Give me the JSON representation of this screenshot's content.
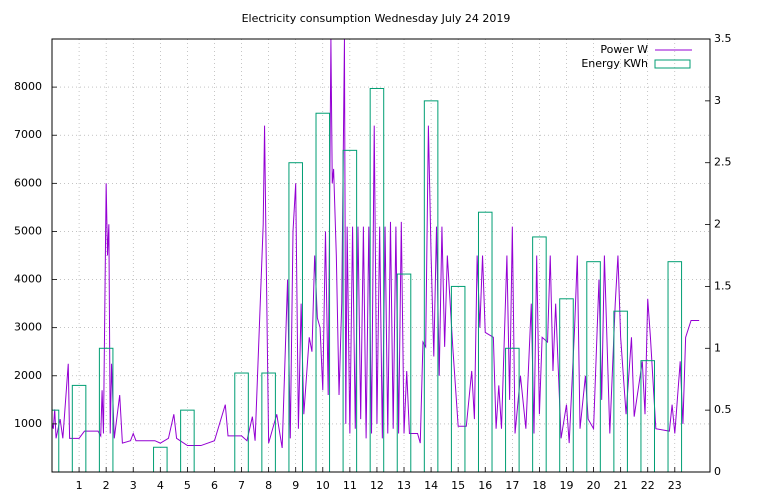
{
  "chart_data": {
    "type": "line",
    "title": "Electricity consumption Wednesday July 24 2019",
    "xlim": [
      0,
      24.3
    ],
    "xticks": [
      1,
      2,
      3,
      4,
      5,
      6,
      7,
      8,
      9,
      10,
      11,
      12,
      13,
      14,
      15,
      16,
      17,
      18,
      19,
      20,
      21,
      22,
      23
    ],
    "ylim": [
      0,
      9000
    ],
    "yticks": [
      1000,
      2000,
      3000,
      4000,
      5000,
      6000,
      7000,
      8000
    ],
    "y2lim": [
      0,
      3.5
    ],
    "y2ticks": [
      0,
      0.5,
      1,
      1.5,
      2,
      2.5,
      3,
      3.5
    ],
    "grid": true,
    "legend": "top-right",
    "series": [
      {
        "name": "Power W",
        "color": "#9400d3",
        "type": "line",
        "x": [
          0.0,
          0.05,
          0.1,
          0.15,
          0.3,
          0.4,
          0.6,
          0.65,
          1.0,
          1.2,
          1.7,
          1.8,
          1.85,
          1.9,
          2.0,
          2.05,
          2.1,
          2.15,
          2.2,
          2.3,
          2.5,
          2.6,
          2.9,
          3.0,
          3.1,
          3.8,
          4.0,
          4.3,
          4.5,
          4.6,
          5.0,
          5.5,
          6.0,
          6.4,
          6.5,
          7.0,
          7.2,
          7.4,
          7.5,
          7.8,
          7.85,
          7.9,
          8.0,
          8.3,
          8.5,
          8.7,
          8.8,
          8.9,
          9.0,
          9.1,
          9.2,
          9.3,
          9.5,
          9.6,
          9.7,
          9.8,
          9.9,
          10.0,
          10.1,
          10.2,
          10.3,
          10.35,
          10.4,
          10.5,
          10.6,
          10.7,
          10.8,
          10.85,
          10.9,
          11.0,
          11.1,
          11.2,
          11.3,
          11.4,
          11.5,
          11.6,
          11.7,
          11.8,
          11.9,
          12.0,
          12.1,
          12.2,
          12.3,
          12.4,
          12.5,
          12.6,
          12.7,
          12.8,
          12.9,
          13.0,
          13.1,
          13.2,
          13.5,
          13.6,
          13.7,
          13.8,
          13.9,
          14.0,
          14.1,
          14.2,
          14.3,
          14.4,
          14.5,
          14.6,
          14.8,
          15.0,
          15.3,
          15.5,
          15.6,
          15.7,
          15.8,
          15.9,
          16.0,
          16.3,
          16.4,
          16.5,
          16.6,
          16.8,
          16.9,
          17.0,
          17.1,
          17.3,
          17.5,
          17.7,
          17.8,
          17.9,
          18.0,
          18.1,
          18.3,
          18.4,
          18.5,
          18.6,
          18.8,
          19.0,
          19.1,
          19.3,
          19.4,
          19.5,
          19.7,
          19.8,
          20.0,
          20.2,
          20.3,
          20.4,
          20.6,
          20.8,
          20.9,
          21.0,
          21.2,
          21.4,
          21.5,
          21.8,
          21.9,
          22.0,
          22.1,
          22.3,
          22.8,
          22.9,
          23.0,
          23.2,
          23.3,
          23.4,
          23.6,
          23.9
        ],
        "values": [
          1000,
          900,
          1300,
          700,
          1100,
          700,
          2250,
          700,
          700,
          850,
          850,
          750,
          1700,
          800,
          6000,
          4500,
          5150,
          800,
          2250,
          700,
          1600,
          600,
          650,
          800,
          650,
          650,
          600,
          700,
          1200,
          700,
          550,
          550,
          650,
          1400,
          750,
          750,
          650,
          1150,
          650,
          5150,
          7200,
          4900,
          600,
          1200,
          500,
          4000,
          700,
          5000,
          6000,
          900,
          3500,
          1200,
          2800,
          2500,
          4500,
          3200,
          3000,
          1700,
          5000,
          1600,
          9000,
          6000,
          6300,
          4500,
          1600,
          3500,
          9000,
          1000,
          5100,
          800,
          5100,
          900,
          5100,
          1100,
          5100,
          700,
          5100,
          800,
          7200,
          1000,
          5100,
          700,
          5100,
          800,
          5200,
          900,
          5100,
          800,
          5200,
          800,
          2100,
          800,
          800,
          600,
          2700,
          2600,
          7200,
          4500,
          2400,
          5100,
          2000,
          5100,
          2600,
          4500,
          2600,
          950,
          950,
          2100,
          1100,
          4500,
          3000,
          4500,
          2900,
          2800,
          900,
          1800,
          900,
          4500,
          1500,
          5100,
          800,
          2000,
          900,
          3500,
          800,
          4500,
          1200,
          2800,
          2700,
          4500,
          2100,
          3500,
          700,
          1400,
          600,
          3000,
          4500,
          900,
          2000,
          1100,
          900,
          4000,
          1500,
          4500,
          800,
          3500,
          4500,
          2800,
          1200,
          2800,
          1150,
          2300,
          1200,
          3600,
          2800,
          900,
          850,
          1400,
          800,
          2300,
          1000,
          2800,
          3150,
          3150
        ]
      },
      {
        "name": "Energy KWh",
        "color": "#009e73",
        "type": "bar",
        "axis": "y2",
        "x": [
          0,
          1,
          2,
          3,
          4,
          5,
          6,
          7,
          8,
          9,
          10,
          11,
          12,
          13,
          14,
          15,
          16,
          17,
          18,
          19,
          20,
          21,
          22,
          23
        ],
        "values": [
          0.5,
          0.7,
          1.0,
          0,
          0.2,
          0.5,
          0,
          0.8,
          0.8,
          2.5,
          2.9,
          2.6,
          3.1,
          1.6,
          3.0,
          1.5,
          2.1,
          1.0,
          1.9,
          1.4,
          1.7,
          1.3,
          0.9,
          1.7
        ]
      }
    ]
  }
}
